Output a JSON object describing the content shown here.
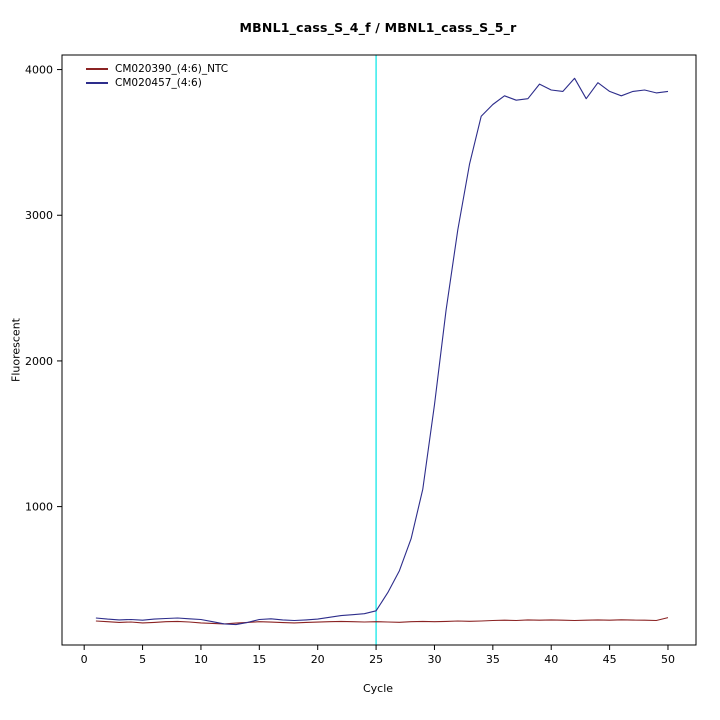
{
  "chart_data": {
    "type": "line",
    "title": "MBNL1_cass_S_4_f / MBNL1_cass_S_5_r",
    "xlabel": "Cycle",
    "ylabel": "Fluorescent",
    "x": [
      1,
      2,
      3,
      4,
      5,
      6,
      7,
      8,
      9,
      10,
      11,
      12,
      13,
      14,
      15,
      16,
      17,
      18,
      19,
      20,
      21,
      22,
      23,
      24,
      25,
      26,
      27,
      28,
      29,
      30,
      31,
      32,
      33,
      34,
      35,
      36,
      37,
      38,
      39,
      40,
      41,
      42,
      43,
      44,
      45,
      46,
      47,
      48,
      49,
      50
    ],
    "series": [
      {
        "name": "CM020390_(4:6)_NTC",
        "color": "#8b2323",
        "values": [
          215,
          210,
          205,
          208,
          202,
          205,
          210,
          212,
          208,
          202,
          198,
          195,
          200,
          205,
          210,
          207,
          204,
          202,
          205,
          207,
          210,
          212,
          210,
          208,
          210,
          208,
          206,
          210,
          212,
          210,
          212,
          215,
          213,
          215,
          218,
          220,
          218,
          222,
          220,
          222,
          220,
          218,
          220,
          222,
          220,
          223,
          221,
          220,
          218,
          238
        ]
      },
      {
        "name": "CM020457_(4:6)",
        "color": "#2d2d8b",
        "values": [
          235,
          228,
          222,
          225,
          220,
          228,
          232,
          235,
          230,
          225,
          210,
          195,
          190,
          205,
          225,
          230,
          222,
          218,
          222,
          228,
          240,
          252,
          258,
          265,
          285,
          410,
          560,
          780,
          1120,
          1700,
          2350,
          2900,
          3350,
          3680,
          3760,
          3820,
          3790,
          3800,
          3900,
          3860,
          3850,
          3940,
          3800,
          3910,
          3850,
          3820,
          3850,
          3860,
          3840,
          3850
        ]
      }
    ],
    "threshold_line": {
      "x": 25,
      "color": "#00e5e5"
    },
    "x_ticks": [
      0,
      5,
      10,
      15,
      20,
      25,
      30,
      35,
      40,
      45,
      50
    ],
    "y_ticks": [
      1000,
      2000,
      3000,
      4000
    ],
    "xlim": [
      -1.9,
      52.4
    ],
    "ylim": [
      50,
      4100
    ],
    "grid": false,
    "legend_position": "top-left",
    "axis_color": "#000000",
    "background_color": "#ffffff"
  }
}
